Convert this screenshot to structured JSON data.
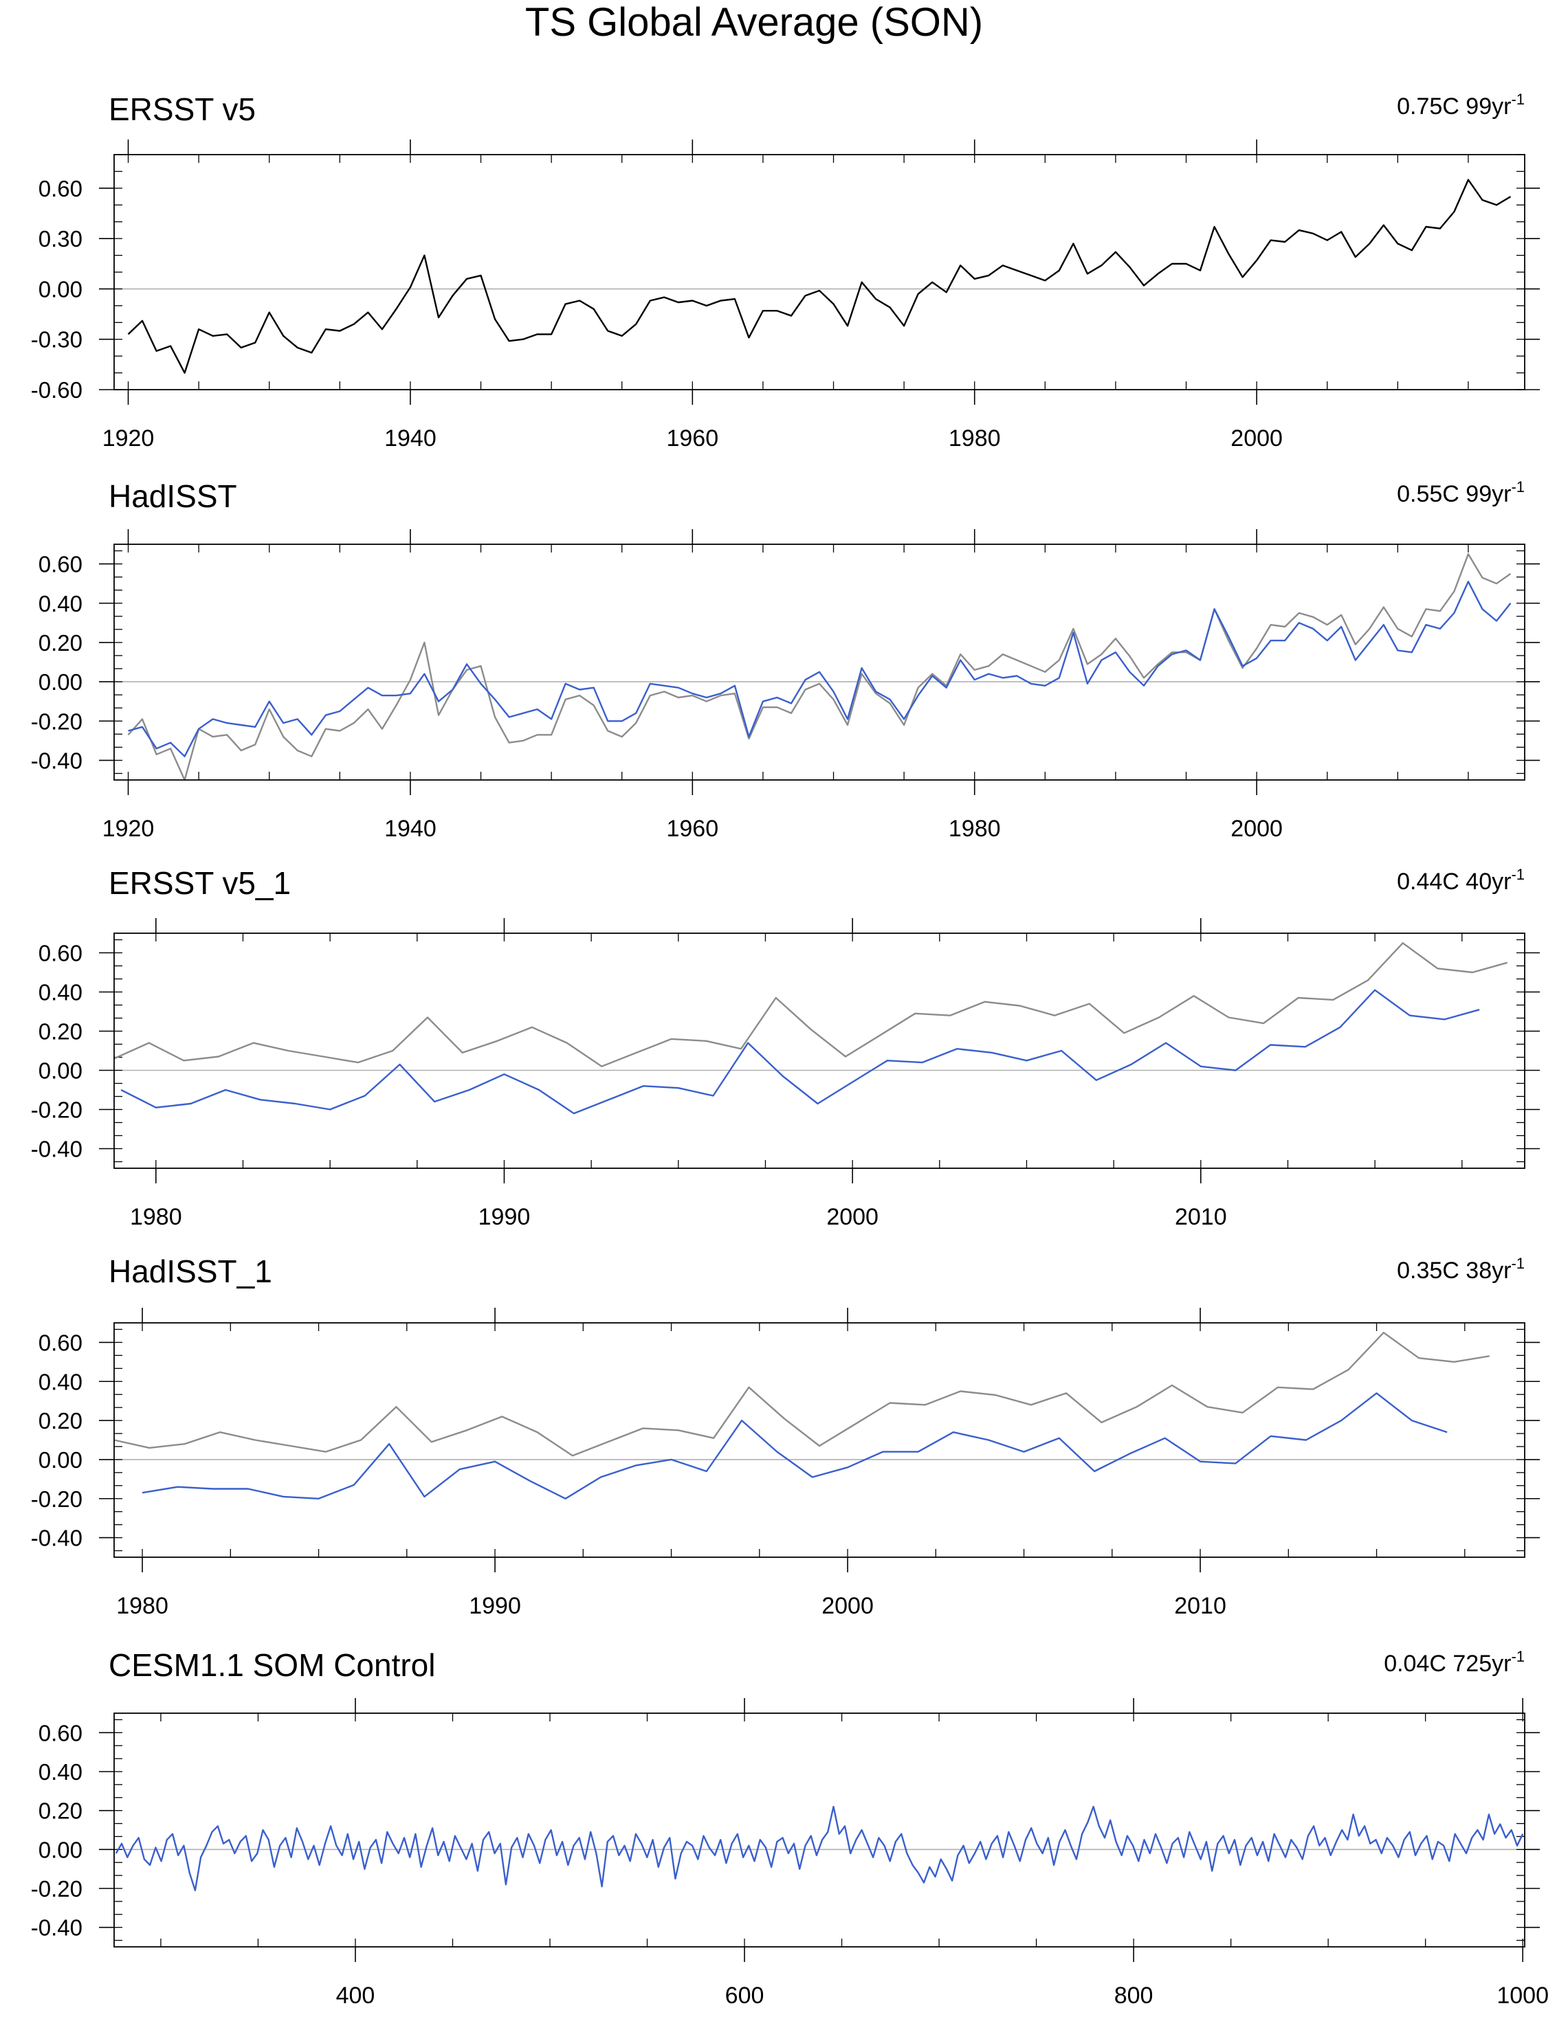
{
  "figure": {
    "title": "TS Global Average (SON)"
  },
  "colors": {
    "obs": "#000000",
    "reference": "#8c8c8c",
    "model": "#3a5fcd",
    "zero": "#b0b0b0",
    "axis": "#000000"
  },
  "chart_data": [
    {
      "type": "line",
      "title": "ERSST v5",
      "trend": {
        "value": "0.75C 99yr",
        "superscript": "-1"
      },
      "xlim": [
        1919,
        2019
      ],
      "ylim": [
        -0.6,
        0.8
      ],
      "yticks": [
        -0.6,
        -0.3,
        0.0,
        0.3,
        0.6
      ],
      "ytick_labels": [
        "-0.60",
        "-0.30",
        "0.00",
        "0.30",
        "0.60"
      ],
      "xticks": [
        1920,
        1940,
        1960,
        1980,
        2000
      ],
      "xtick_labels": [
        "1920",
        "1940",
        "1960",
        "1980",
        "2000"
      ],
      "series": [
        {
          "name": "ERSST v5",
          "style": "obs",
          "x_start": 1920,
          "values": [
            -0.27,
            -0.19,
            -0.37,
            -0.34,
            -0.5,
            -0.24,
            -0.28,
            -0.27,
            -0.35,
            -0.32,
            -0.14,
            -0.28,
            -0.35,
            -0.38,
            -0.24,
            -0.25,
            -0.21,
            -0.14,
            -0.24,
            -0.12,
            0.01,
            0.2,
            -0.17,
            -0.04,
            0.06,
            0.08,
            -0.18,
            -0.31,
            -0.3,
            -0.27,
            -0.27,
            -0.09,
            -0.07,
            -0.12,
            -0.25,
            -0.28,
            -0.21,
            -0.07,
            -0.05,
            -0.08,
            -0.07,
            -0.1,
            -0.07,
            -0.06,
            -0.29,
            -0.13,
            -0.13,
            -0.16,
            -0.04,
            -0.01,
            -0.09,
            -0.22,
            0.04,
            -0.06,
            -0.11,
            -0.22,
            -0.03,
            0.04,
            -0.02,
            0.14,
            0.06,
            0.08,
            0.14,
            0.11,
            0.08,
            0.05,
            0.11,
            0.27,
            0.09,
            0.14,
            0.22,
            0.13,
            0.02,
            0.09,
            0.15,
            0.15,
            0.11,
            0.37,
            0.21,
            0.07,
            0.17,
            0.29,
            0.28,
            0.35,
            0.33,
            0.29,
            0.34,
            0.19,
            0.27,
            0.38,
            0.27,
            0.23,
            0.37,
            0.36,
            0.46,
            0.65,
            0.53,
            0.5,
            0.55
          ]
        }
      ]
    },
    {
      "type": "line",
      "title": "HadISST",
      "trend": {
        "value": "0.55C 99yr",
        "superscript": "-1"
      },
      "xlim": [
        1919,
        2019
      ],
      "ylim": [
        -0.5,
        0.7
      ],
      "yticks": [
        -0.4,
        -0.2,
        0.0,
        0.2,
        0.4,
        0.6
      ],
      "ytick_labels": [
        "-0.40",
        "-0.20",
        "0.00",
        "0.20",
        "0.40",
        "0.60"
      ],
      "xticks": [
        1920,
        1940,
        1960,
        1980,
        2000
      ],
      "xtick_labels": [
        "1920",
        "1940",
        "1960",
        "1980",
        "2000"
      ],
      "series": [
        {
          "name": "ERSST v5",
          "style": "reference",
          "x_start": 1920,
          "values": [
            -0.27,
            -0.19,
            -0.37,
            -0.34,
            -0.5,
            -0.24,
            -0.28,
            -0.27,
            -0.35,
            -0.32,
            -0.14,
            -0.28,
            -0.35,
            -0.38,
            -0.24,
            -0.25,
            -0.21,
            -0.14,
            -0.24,
            -0.12,
            0.01,
            0.2,
            -0.17,
            -0.04,
            0.06,
            0.08,
            -0.18,
            -0.31,
            -0.3,
            -0.27,
            -0.27,
            -0.09,
            -0.07,
            -0.12,
            -0.25,
            -0.28,
            -0.21,
            -0.07,
            -0.05,
            -0.08,
            -0.07,
            -0.1,
            -0.07,
            -0.06,
            -0.29,
            -0.13,
            -0.13,
            -0.16,
            -0.04,
            -0.01,
            -0.09,
            -0.22,
            0.04,
            -0.06,
            -0.11,
            -0.22,
            -0.03,
            0.04,
            -0.02,
            0.14,
            0.06,
            0.08,
            0.14,
            0.11,
            0.08,
            0.05,
            0.11,
            0.27,
            0.09,
            0.14,
            0.22,
            0.13,
            0.02,
            0.09,
            0.15,
            0.15,
            0.11,
            0.37,
            0.21,
            0.07,
            0.17,
            0.29,
            0.28,
            0.35,
            0.33,
            0.29,
            0.34,
            0.19,
            0.27,
            0.38,
            0.27,
            0.23,
            0.37,
            0.36,
            0.46,
            0.65,
            0.53,
            0.5,
            0.55
          ]
        },
        {
          "name": "HadISST",
          "style": "model",
          "x_start": 1920,
          "values": [
            -0.25,
            -0.23,
            -0.34,
            -0.31,
            -0.38,
            -0.24,
            -0.19,
            -0.21,
            -0.22,
            -0.23,
            -0.1,
            -0.21,
            -0.19,
            -0.27,
            -0.17,
            -0.15,
            -0.09,
            -0.03,
            -0.07,
            -0.07,
            -0.06,
            0.04,
            -0.1,
            -0.04,
            0.09,
            -0.01,
            -0.09,
            -0.18,
            -0.16,
            -0.14,
            -0.19,
            -0.01,
            -0.04,
            -0.03,
            -0.2,
            -0.2,
            -0.16,
            -0.01,
            -0.02,
            -0.03,
            -0.06,
            -0.08,
            -0.06,
            -0.02,
            -0.28,
            -0.1,
            -0.08,
            -0.11,
            0.01,
            0.05,
            -0.05,
            -0.19,
            0.07,
            -0.05,
            -0.09,
            -0.19,
            -0.07,
            0.03,
            -0.03,
            0.11,
            0.01,
            0.04,
            0.02,
            0.03,
            -0.01,
            -0.02,
            0.02,
            0.25,
            -0.01,
            0.11,
            0.15,
            0.05,
            -0.02,
            0.08,
            0.14,
            0.16,
            0.11,
            0.37,
            0.23,
            0.08,
            0.12,
            0.21,
            0.21,
            0.3,
            0.27,
            0.21,
            0.28,
            0.11,
            0.2,
            0.29,
            0.16,
            0.15,
            0.29,
            0.27,
            0.35,
            0.51,
            0.37,
            0.31,
            0.4
          ]
        }
      ]
    },
    {
      "type": "line",
      "title": "ERSST v5_1",
      "trend": {
        "value": "0.44C 40yr",
        "superscript": "-1"
      },
      "xlim": [
        1978.8,
        2019.3
      ],
      "ylim": [
        -0.5,
        0.7
      ],
      "yticks": [
        -0.4,
        -0.2,
        0.0,
        0.2,
        0.4,
        0.6
      ],
      "ytick_labels": [
        "-0.40",
        "-0.20",
        "0.00",
        "0.20",
        "0.40",
        "0.60"
      ],
      "xticks": [
        1980,
        1990,
        2000,
        2010
      ],
      "xtick_labels": [
        "1980",
        "1990",
        "2000",
        "2010"
      ],
      "series": [
        {
          "name": "ERSST v5",
          "style": "reference",
          "x_start": 1978.8,
          "values": [
            0.06,
            0.14,
            0.05,
            0.07,
            0.14,
            0.1,
            0.07,
            0.04,
            0.1,
            0.27,
            0.09,
            0.15,
            0.22,
            0.14,
            0.02,
            0.09,
            0.16,
            0.15,
            0.11,
            0.37,
            0.21,
            0.07,
            0.18,
            0.29,
            0.28,
            0.35,
            0.33,
            0.28,
            0.34,
            0.19,
            0.27,
            0.38,
            0.27,
            0.24,
            0.37,
            0.36,
            0.46,
            0.65,
            0.52,
            0.5,
            0.55
          ]
        },
        {
          "name": "ERSST v5_1",
          "style": "model",
          "x_start": 1979,
          "values": [
            -0.1,
            -0.19,
            -0.17,
            -0.1,
            -0.15,
            -0.17,
            -0.2,
            -0.13,
            0.03,
            -0.16,
            -0.1,
            -0.02,
            -0.1,
            -0.22,
            -0.15,
            -0.08,
            -0.09,
            -0.13,
            0.14,
            -0.03,
            -0.17,
            -0.06,
            0.05,
            0.04,
            0.11,
            0.09,
            0.05,
            0.1,
            -0.05,
            0.03,
            0.14,
            0.02,
            0.0,
            0.13,
            0.12,
            0.22,
            0.41,
            0.28,
            0.26,
            0.31
          ]
        }
      ]
    },
    {
      "type": "line",
      "title": "HadISST_1",
      "trend": {
        "value": "0.35C 38yr",
        "superscript": "-1"
      },
      "xlim": [
        1979.2,
        2019.2
      ],
      "ylim": [
        -0.5,
        0.7
      ],
      "yticks": [
        -0.4,
        -0.2,
        0.0,
        0.2,
        0.4,
        0.6
      ],
      "ytick_labels": [
        "-0.40",
        "-0.20",
        "0.00",
        "0.20",
        "0.40",
        "0.60"
      ],
      "xticks": [
        1980,
        1990,
        2000,
        2010
      ],
      "xtick_labels": [
        "1980",
        "1990",
        "2000",
        "2010"
      ],
      "series": [
        {
          "name": "ERSST v5",
          "style": "reference",
          "x_start": 1979.2,
          "values": [
            0.1,
            0.06,
            0.08,
            0.14,
            0.1,
            0.07,
            0.04,
            0.1,
            0.27,
            0.09,
            0.15,
            0.22,
            0.14,
            0.02,
            0.09,
            0.16,
            0.15,
            0.11,
            0.37,
            0.21,
            0.07,
            0.18,
            0.29,
            0.28,
            0.35,
            0.33,
            0.28,
            0.34,
            0.19,
            0.27,
            0.38,
            0.27,
            0.24,
            0.37,
            0.36,
            0.46,
            0.65,
            0.52,
            0.5,
            0.53
          ]
        },
        {
          "name": "HadISST_1",
          "style": "model",
          "x_start": 1980,
          "values": [
            -0.17,
            -0.14,
            -0.15,
            -0.15,
            -0.19,
            -0.2,
            -0.13,
            0.08,
            -0.19,
            -0.05,
            -0.01,
            -0.11,
            -0.2,
            -0.09,
            -0.03,
            0.0,
            -0.06,
            0.2,
            0.04,
            -0.09,
            -0.04,
            0.04,
            0.04,
            0.14,
            0.1,
            0.04,
            0.11,
            -0.06,
            0.03,
            0.11,
            -0.01,
            -0.02,
            0.12,
            0.1,
            0.2,
            0.34,
            0.2,
            0.14
          ]
        }
      ]
    },
    {
      "type": "line",
      "title": "CESM1.1 SOM Control",
      "trend": {
        "value": "0.04C 725yr",
        "superscript": "-1"
      },
      "xlim": [
        276,
        1001
      ],
      "ylim": [
        -0.5,
        0.7
      ],
      "yticks": [
        -0.4,
        -0.2,
        0.0,
        0.2,
        0.4,
        0.6
      ],
      "ytick_labels": [
        "-0.40",
        "-0.20",
        "0.00",
        "0.20",
        "0.40",
        "0.60"
      ],
      "xticks": [
        400,
        600,
        800,
        1000
      ],
      "xtick_labels": [
        "400",
        "600",
        "800",
        "1000"
      ],
      "series": [
        {
          "name": "CESM1.1 SOM Control",
          "style": "model",
          "x_start": 277,
          "x_end": 1000,
          "values": [
            -0.02,
            0.03,
            -0.04,
            0.02,
            0.06,
            -0.05,
            -0.08,
            0.01,
            -0.06,
            0.05,
            0.08,
            -0.03,
            0.02,
            -0.12,
            -0.21,
            -0.04,
            0.02,
            0.09,
            0.12,
            0.03,
            0.05,
            -0.02,
            0.04,
            0.07,
            -0.06,
            -0.02,
            0.1,
            0.05,
            -0.09,
            0.02,
            0.06,
            -0.04,
            0.11,
            0.04,
            -0.05,
            0.02,
            -0.08,
            0.03,
            0.12,
            0.02,
            -0.03,
            0.08,
            -0.05,
            0.04,
            -0.1,
            0.01,
            0.05,
            -0.07,
            0.09,
            0.03,
            -0.02,
            0.06,
            -0.04,
            0.08,
            -0.09,
            0.02,
            0.11,
            -0.03,
            0.04,
            -0.06,
            0.07,
            0.01,
            -0.05,
            0.03,
            -0.11,
            0.05,
            0.09,
            -0.02,
            0.03,
            -0.18,
            0.01,
            0.06,
            -0.04,
            0.08,
            0.02,
            -0.07,
            0.05,
            0.1,
            -0.03,
            0.04,
            -0.08,
            0.02,
            0.06,
            -0.05,
            0.09,
            -0.02,
            -0.19,
            0.04,
            0.07,
            -0.03,
            0.02,
            -0.06,
            0.08,
            0.03,
            -0.04,
            0.05,
            -0.09,
            0.01,
            0.06,
            -0.15,
            -0.02,
            0.04,
            0.02,
            -0.05,
            0.07,
            0.01,
            -0.03,
            0.05,
            -0.07,
            0.03,
            0.08,
            -0.04,
            0.02,
            -0.06,
            0.05,
            0.01,
            -0.09,
            0.04,
            0.06,
            -0.02,
            0.03,
            -0.1,
            0.02,
            0.07,
            -0.03,
            0.05,
            0.09,
            0.22,
            0.08,
            0.12,
            -0.02,
            0.05,
            0.1,
            0.03,
            -0.04,
            0.06,
            0.02,
            -0.06,
            0.04,
            0.08,
            -0.02,
            -0.08,
            -0.12,
            -0.17,
            -0.09,
            -0.14,
            -0.05,
            -0.1,
            -0.16,
            -0.03,
            0.02,
            -0.07,
            -0.02,
            0.04,
            -0.05,
            0.03,
            0.07,
            -0.04,
            0.09,
            0.02,
            -0.06,
            0.05,
            0.11,
            0.03,
            -0.02,
            0.06,
            -0.08,
            0.04,
            0.1,
            0.02,
            -0.05,
            0.08,
            0.14,
            0.22,
            0.12,
            0.06,
            0.15,
            0.04,
            -0.03,
            0.07,
            0.02,
            -0.06,
            0.05,
            -0.02,
            0.08,
            0.01,
            -0.07,
            0.03,
            0.06,
            -0.04,
            0.09,
            0.02,
            -0.05,
            0.04,
            -0.11,
            0.03,
            0.07,
            -0.02,
            0.05,
            -0.08,
            0.02,
            0.06,
            -0.03,
            0.04,
            -0.06,
            0.08,
            0.02,
            -0.04,
            0.05,
            0.01,
            -0.05,
            0.07,
            0.12,
            0.02,
            0.06,
            -0.03,
            0.04,
            0.1,
            0.05,
            0.18,
            0.07,
            0.12,
            0.03,
            0.05,
            -0.02,
            0.06,
            0.02,
            -0.04,
            0.05,
            0.09,
            -0.03,
            0.03,
            0.07,
            -0.05,
            0.04,
            0.02,
            -0.06,
            0.08,
            0.03,
            -0.02,
            0.06,
            0.1,
            0.05,
            0.18,
            0.08,
            0.13,
            0.06,
            0.1,
            0.02,
            0.08
          ]
        }
      ]
    }
  ]
}
